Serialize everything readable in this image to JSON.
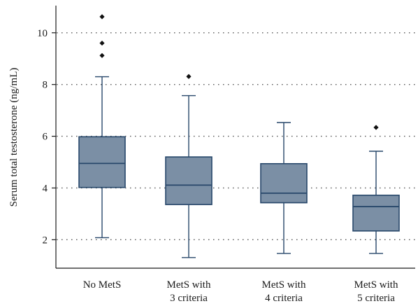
{
  "chart_data": {
    "type": "box",
    "ylabel": "Serum total testosterone (ng/mL)",
    "xlabel": "",
    "title": "",
    "ylim": [
      0.9,
      11.05
    ],
    "yticks": [
      2,
      4,
      6,
      8,
      10
    ],
    "grid": "dotted-horizontal",
    "colors": {
      "box_fill": "#7b8fa5",
      "box_stroke": "#27476a",
      "outlier": "#111111"
    },
    "categories": [
      {
        "line1": "No MetS",
        "line2": ""
      },
      {
        "line1": "MetS with",
        "line2": "3 criteria"
      },
      {
        "line1": "MetS with",
        "line2": "4 criteria"
      },
      {
        "line1": "MetS with",
        "line2": "5 criteria"
      }
    ],
    "boxes": [
      {
        "whisker_low": 2.08,
        "q1": 4.02,
        "median": 4.95,
        "q3": 5.98,
        "whisker_high": 8.3,
        "outliers": [
          9.12,
          9.6,
          10.62
        ]
      },
      {
        "whisker_low": 1.31,
        "q1": 3.36,
        "median": 4.11,
        "q3": 5.2,
        "whisker_high": 7.57,
        "outliers": [
          8.31
        ]
      },
      {
        "whisker_low": 1.47,
        "q1": 3.43,
        "median": 3.8,
        "q3": 4.94,
        "whisker_high": 6.53,
        "outliers": []
      },
      {
        "whisker_low": 1.47,
        "q1": 2.34,
        "median": 3.28,
        "q3": 3.72,
        "whisker_high": 5.42,
        "outliers": [
          6.34
        ]
      }
    ]
  }
}
